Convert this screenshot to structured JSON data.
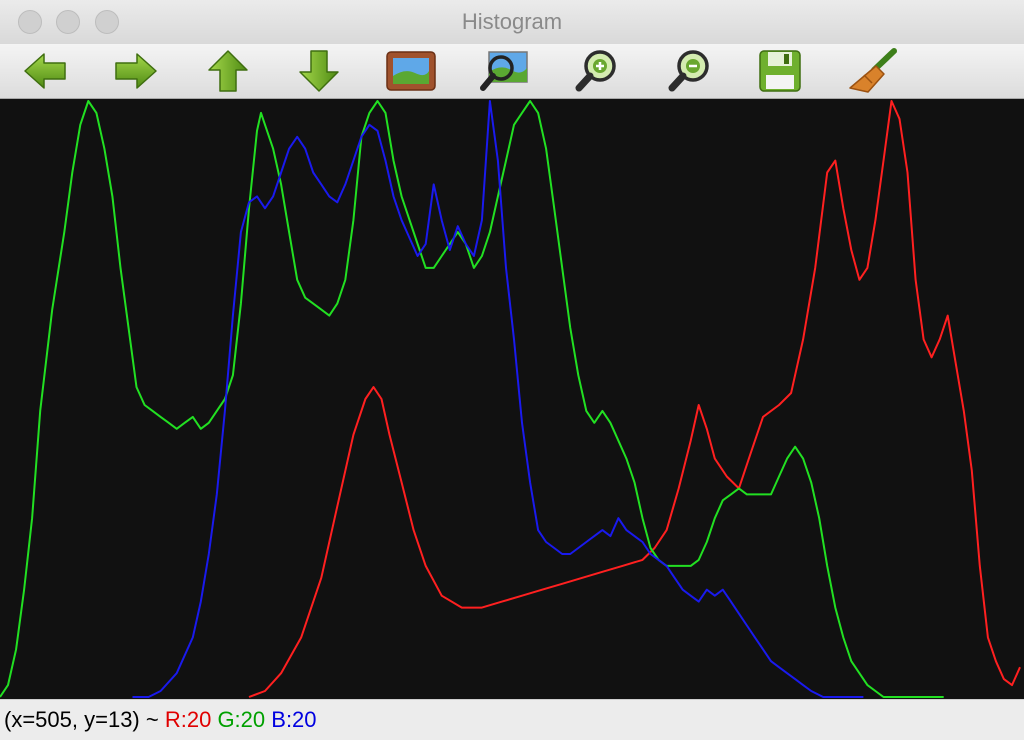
{
  "window": {
    "title": "Histogram"
  },
  "toolbar": {
    "buttons": [
      {
        "name": "back-button",
        "icon": "arrow-left-icon"
      },
      {
        "name": "forward-button",
        "icon": "arrow-right-icon"
      },
      {
        "name": "up-button",
        "icon": "arrow-up-icon"
      },
      {
        "name": "down-button",
        "icon": "arrow-down-icon"
      },
      {
        "name": "show-image-button",
        "icon": "picture-icon"
      },
      {
        "name": "zoom-fit-button",
        "icon": "zoom-image-icon"
      },
      {
        "name": "zoom-in-button",
        "icon": "zoom-in-icon"
      },
      {
        "name": "zoom-out-button",
        "icon": "zoom-out-icon"
      },
      {
        "name": "save-button",
        "icon": "floppy-disk-icon"
      },
      {
        "name": "clear-button",
        "icon": "broom-icon"
      }
    ]
  },
  "status": {
    "coords": "(x=505, y=13) ~ ",
    "r": "R:20",
    "g": "G:20",
    "b": "B:20"
  },
  "colors": {
    "red": "#ff2020",
    "green": "#22e022",
    "blue": "#1a1aee",
    "background": "#111111"
  },
  "chart_data": {
    "type": "line",
    "xlim": [
      0,
      255
    ],
    "ylim": [
      0,
      100
    ],
    "series": [
      {
        "color": "#ff2020",
        "points": [
          [
            62,
            0
          ],
          [
            66,
            1
          ],
          [
            70,
            4
          ],
          [
            75,
            10
          ],
          [
            80,
            20
          ],
          [
            84,
            32
          ],
          [
            88,
            44
          ],
          [
            91,
            50
          ],
          [
            93,
            52
          ],
          [
            95,
            50
          ],
          [
            97,
            44
          ],
          [
            100,
            36
          ],
          [
            103,
            28
          ],
          [
            106,
            22
          ],
          [
            110,
            17
          ],
          [
            115,
            15
          ],
          [
            120,
            15
          ],
          [
            125,
            16
          ],
          [
            130,
            17
          ],
          [
            135,
            18
          ],
          [
            140,
            19
          ],
          [
            145,
            20
          ],
          [
            150,
            21
          ],
          [
            155,
            22
          ],
          [
            160,
            23
          ],
          [
            163,
            25
          ],
          [
            166,
            28
          ],
          [
            169,
            35
          ],
          [
            172,
            43
          ],
          [
            174,
            49
          ],
          [
            176,
            45
          ],
          [
            178,
            40
          ],
          [
            181,
            37
          ],
          [
            184,
            35
          ],
          [
            187,
            41
          ],
          [
            190,
            47
          ],
          [
            194,
            49
          ],
          [
            197,
            51
          ],
          [
            200,
            60
          ],
          [
            203,
            72
          ],
          [
            206,
            88
          ],
          [
            208,
            90
          ],
          [
            210,
            82
          ],
          [
            212,
            75
          ],
          [
            214,
            70
          ],
          [
            216,
            72
          ],
          [
            218,
            80
          ],
          [
            220,
            90
          ],
          [
            222,
            100
          ],
          [
            224,
            97
          ],
          [
            226,
            88
          ],
          [
            228,
            70
          ],
          [
            230,
            60
          ],
          [
            232,
            57
          ],
          [
            234,
            60
          ],
          [
            236,
            64
          ],
          [
            238,
            56
          ],
          [
            240,
            48
          ],
          [
            242,
            38
          ],
          [
            244,
            22
          ],
          [
            246,
            10
          ],
          [
            248,
            6
          ],
          [
            250,
            3
          ],
          [
            252,
            2
          ],
          [
            254,
            5
          ]
        ]
      },
      {
        "color": "#22e022",
        "points": [
          [
            0,
            0
          ],
          [
            2,
            2
          ],
          [
            4,
            8
          ],
          [
            6,
            18
          ],
          [
            8,
            30
          ],
          [
            10,
            48
          ],
          [
            13,
            65
          ],
          [
            16,
            78
          ],
          [
            18,
            88
          ],
          [
            20,
            96
          ],
          [
            22,
            100
          ],
          [
            24,
            98
          ],
          [
            26,
            92
          ],
          [
            28,
            84
          ],
          [
            30,
            72
          ],
          [
            32,
            62
          ],
          [
            34,
            52
          ],
          [
            36,
            49
          ],
          [
            38,
            48
          ],
          [
            40,
            47
          ],
          [
            42,
            46
          ],
          [
            44,
            45
          ],
          [
            46,
            46
          ],
          [
            48,
            47
          ],
          [
            50,
            45
          ],
          [
            52,
            46
          ],
          [
            54,
            48
          ],
          [
            56,
            50
          ],
          [
            58,
            54
          ],
          [
            60,
            66
          ],
          [
            62,
            82
          ],
          [
            64,
            95
          ],
          [
            65,
            98
          ],
          [
            66,
            96
          ],
          [
            68,
            92
          ],
          [
            70,
            86
          ],
          [
            72,
            78
          ],
          [
            74,
            70
          ],
          [
            76,
            67
          ],
          [
            78,
            66
          ],
          [
            80,
            65
          ],
          [
            82,
            64
          ],
          [
            84,
            66
          ],
          [
            86,
            70
          ],
          [
            88,
            80
          ],
          [
            90,
            94
          ],
          [
            92,
            98
          ],
          [
            94,
            100
          ],
          [
            96,
            98
          ],
          [
            98,
            90
          ],
          [
            100,
            84
          ],
          [
            102,
            80
          ],
          [
            104,
            76
          ],
          [
            106,
            72
          ],
          [
            108,
            72
          ],
          [
            110,
            74
          ],
          [
            112,
            76
          ],
          [
            114,
            78
          ],
          [
            116,
            76
          ],
          [
            118,
            72
          ],
          [
            120,
            74
          ],
          [
            122,
            78
          ],
          [
            124,
            84
          ],
          [
            126,
            90
          ],
          [
            128,
            96
          ],
          [
            130,
            98
          ],
          [
            132,
            100
          ],
          [
            134,
            98
          ],
          [
            136,
            92
          ],
          [
            138,
            82
          ],
          [
            140,
            72
          ],
          [
            142,
            62
          ],
          [
            144,
            54
          ],
          [
            146,
            48
          ],
          [
            148,
            46
          ],
          [
            150,
            48
          ],
          [
            152,
            46
          ],
          [
            154,
            43
          ],
          [
            156,
            40
          ],
          [
            158,
            36
          ],
          [
            160,
            30
          ],
          [
            162,
            25
          ],
          [
            164,
            23
          ],
          [
            166,
            22
          ],
          [
            168,
            22
          ],
          [
            170,
            22
          ],
          [
            172,
            22
          ],
          [
            174,
            23
          ],
          [
            176,
            26
          ],
          [
            178,
            30
          ],
          [
            180,
            33
          ],
          [
            182,
            34
          ],
          [
            184,
            35
          ],
          [
            186,
            34
          ],
          [
            188,
            34
          ],
          [
            190,
            34
          ],
          [
            192,
            34
          ],
          [
            194,
            37
          ],
          [
            196,
            40
          ],
          [
            198,
            42
          ],
          [
            200,
            40
          ],
          [
            202,
            36
          ],
          [
            204,
            30
          ],
          [
            206,
            22
          ],
          [
            208,
            15
          ],
          [
            210,
            10
          ],
          [
            212,
            6
          ],
          [
            214,
            4
          ],
          [
            216,
            2
          ],
          [
            218,
            1
          ],
          [
            220,
            0
          ],
          [
            235,
            0
          ]
        ]
      },
      {
        "color": "#1a1aee",
        "points": [
          [
            33,
            0
          ],
          [
            37,
            0
          ],
          [
            40,
            1
          ],
          [
            44,
            4
          ],
          [
            48,
            10
          ],
          [
            50,
            16
          ],
          [
            52,
            24
          ],
          [
            54,
            34
          ],
          [
            56,
            48
          ],
          [
            58,
            64
          ],
          [
            60,
            78
          ],
          [
            62,
            83
          ],
          [
            64,
            84
          ],
          [
            66,
            82
          ],
          [
            68,
            84
          ],
          [
            70,
            88
          ],
          [
            72,
            92
          ],
          [
            74,
            94
          ],
          [
            76,
            92
          ],
          [
            78,
            88
          ],
          [
            80,
            86
          ],
          [
            82,
            84
          ],
          [
            84,
            83
          ],
          [
            86,
            86
          ],
          [
            88,
            90
          ],
          [
            90,
            94
          ],
          [
            92,
            96
          ],
          [
            94,
            95
          ],
          [
            96,
            90
          ],
          [
            98,
            84
          ],
          [
            100,
            80
          ],
          [
            102,
            77
          ],
          [
            104,
            74
          ],
          [
            106,
            76
          ],
          [
            108,
            86
          ],
          [
            110,
            80
          ],
          [
            112,
            75
          ],
          [
            114,
            79
          ],
          [
            116,
            76
          ],
          [
            118,
            74
          ],
          [
            120,
            80
          ],
          [
            122,
            100
          ],
          [
            124,
            90
          ],
          [
            126,
            72
          ],
          [
            128,
            60
          ],
          [
            130,
            46
          ],
          [
            132,
            36
          ],
          [
            134,
            28
          ],
          [
            136,
            26
          ],
          [
            138,
            25
          ],
          [
            140,
            24
          ],
          [
            142,
            24
          ],
          [
            144,
            25
          ],
          [
            146,
            26
          ],
          [
            148,
            27
          ],
          [
            150,
            28
          ],
          [
            152,
            27
          ],
          [
            154,
            30
          ],
          [
            156,
            28
          ],
          [
            158,
            27
          ],
          [
            160,
            26
          ],
          [
            162,
            24
          ],
          [
            164,
            23
          ],
          [
            166,
            22
          ],
          [
            168,
            20
          ],
          [
            170,
            18
          ],
          [
            172,
            17
          ],
          [
            174,
            16
          ],
          [
            176,
            18
          ],
          [
            178,
            17
          ],
          [
            180,
            18
          ],
          [
            182,
            16
          ],
          [
            184,
            14
          ],
          [
            186,
            12
          ],
          [
            188,
            10
          ],
          [
            190,
            8
          ],
          [
            192,
            6
          ],
          [
            194,
            5
          ],
          [
            196,
            4
          ],
          [
            198,
            3
          ],
          [
            200,
            2
          ],
          [
            202,
            1
          ],
          [
            205,
            0
          ],
          [
            215,
            0
          ]
        ]
      }
    ]
  }
}
